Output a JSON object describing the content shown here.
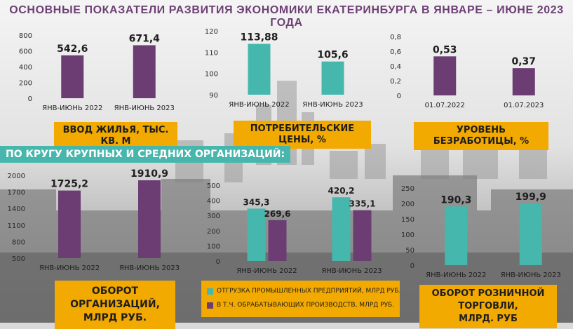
{
  "title": "ОСНОВНЫЕ ПОКАЗАТЕЛИ РАЗВИТИЯ ЭКОНОМИКИ ЕКАТЕРИНБУРГА В ЯНВАРЕ – ИЮНЕ 2023 ГОДА",
  "banner": "ПО КРУГУ КРУПНЫХ И СРЕДНИХ ОРГАНИЗАЦИЙ:",
  "colors": {
    "purple": "#6b3d73",
    "teal": "#45b7ad",
    "gold": "#f2a900",
    "title": "#6d3f74"
  },
  "captions": {
    "housing": "ВВОД ЖИЛЬЯ, ТЫС. КВ. М",
    "prices": "ПОТРЕБИТЕЛЬСКИЕ ЦЕНЫ, %",
    "unemployment": "УРОВЕНЬ БЕЗРАБОТИЦЫ, %",
    "turnover_line1": "ОБОРОТ ОРГАНИЗАЦИЙ,",
    "turnover_line2": "МЛРД РУБ.",
    "retail_line1": "ОБОРОТ РОЗНИЧНОЙ ТОРГОВЛИ,",
    "retail_line2": "МЛРД. РУБ"
  },
  "legend": {
    "shipment": "ОТГРУЗКА ПРОМЫШЛЕННЫХ ПРЕДПРИЯТИЙ, МЛРД РУБ.",
    "manufacturing": "В Т.Ч. ОБРАБАТЫВАЮЩИХ ПРОИЗВОДСТВ, МЛРД РУБ."
  },
  "chart_data": [
    {
      "id": "housing",
      "type": "bar",
      "categories": [
        "ЯНВ-ИЮНЬ 2022",
        "ЯНВ-ИЮНЬ 2023"
      ],
      "series": [
        {
          "values": [
            542.6,
            671.4
          ],
          "labels": [
            "542,6",
            "671,4"
          ],
          "color": "#6b3d73"
        }
      ],
      "ylim": [
        0,
        800
      ],
      "yticks": [
        0,
        200,
        400,
        600,
        800
      ],
      "ytick_labels": [
        "0",
        "200",
        "400",
        "600",
        "800"
      ]
    },
    {
      "id": "prices",
      "type": "bar",
      "categories": [
        "ЯНВ-ИЮНЬ 2022",
        "ЯНВ-ИЮНЬ 2023"
      ],
      "series": [
        {
          "values": [
            113.88,
            105.6
          ],
          "labels": [
            "113,88",
            "105,6"
          ],
          "color": "#45b7ad"
        }
      ],
      "ylim": [
        90,
        120
      ],
      "yticks": [
        90,
        100,
        110,
        120
      ],
      "ytick_labels": [
        "90",
        "100",
        "110",
        "120"
      ]
    },
    {
      "id": "unemployment",
      "type": "bar",
      "categories": [
        "01.07.2022",
        "01.07.2023"
      ],
      "series": [
        {
          "values": [
            0.53,
            0.37
          ],
          "labels": [
            "0,53",
            "0,37"
          ],
          "color": "#6b3d73"
        }
      ],
      "ylim": [
        0,
        0.8
      ],
      "yticks": [
        0,
        0.2,
        0.4,
        0.6,
        0.8
      ],
      "ytick_labels": [
        "0",
        "0,2",
        "0,4",
        "0,6",
        "0,8"
      ]
    },
    {
      "id": "turnover",
      "type": "bar",
      "categories": [
        "ЯНВ-ИЮНЬ 2022",
        "ЯНВ-ИЮНЬ 2023"
      ],
      "series": [
        {
          "values": [
            1725.2,
            1910.9
          ],
          "labels": [
            "1725,2",
            "1910,9"
          ],
          "color": "#6b3d73"
        }
      ],
      "ylim": [
        500,
        2000
      ],
      "yticks": [
        500,
        800,
        1100,
        1400,
        1700,
        2000
      ],
      "ytick_labels": [
        "500",
        "800",
        "1100",
        "1400",
        "1700",
        "2000"
      ]
    },
    {
      "id": "industry",
      "type": "bar",
      "categories": [
        "ЯНВ-ИЮНЬ 2022",
        "ЯНВ-ИЮНЬ 2023"
      ],
      "series": [
        {
          "name": "ОТГРУЗКА ПРОМЫШЛЕННЫХ ПРЕДПРИЯТИЙ, МЛРД РУБ.",
          "values": [
            345.3,
            420.2
          ],
          "labels": [
            "345,3",
            "420,2"
          ],
          "color": "#45b7ad"
        },
        {
          "name": "В Т.Ч. ОБРАБАТЫВАЮЩИХ ПРОИЗВОДСТВ, МЛРД РУБ.",
          "values": [
            269.6,
            335.1
          ],
          "labels": [
            "269,6",
            "335,1"
          ],
          "color": "#6b3d73"
        }
      ],
      "ylim": [
        0,
        500
      ],
      "yticks": [
        0,
        100,
        200,
        300,
        400,
        500
      ],
      "ytick_labels": [
        "0",
        "100",
        "200",
        "300",
        "400",
        "500"
      ]
    },
    {
      "id": "retail",
      "type": "bar",
      "categories": [
        "ЯНВ-ИЮНЬ 2022",
        "ЯНВ-ИЮНЬ 2023"
      ],
      "series": [
        {
          "values": [
            190.3,
            199.9
          ],
          "labels": [
            "190,3",
            "199,9"
          ],
          "color": "#45b7ad"
        }
      ],
      "ylim": [
        0,
        250
      ],
      "yticks": [
        0,
        50,
        100,
        150,
        200,
        250
      ],
      "ytick_labels": [
        "0",
        "50",
        "100",
        "150",
        "200",
        "250"
      ]
    }
  ]
}
